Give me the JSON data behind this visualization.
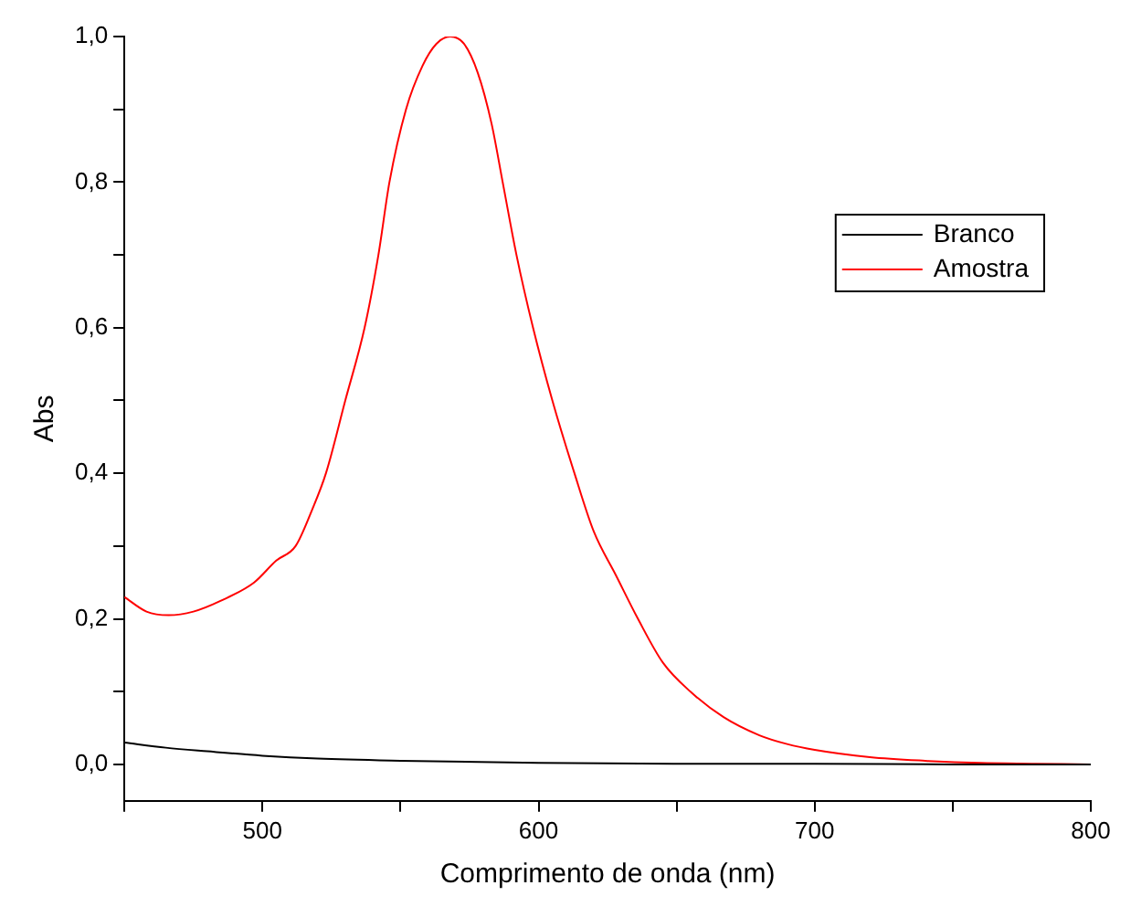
{
  "chart_data": {
    "type": "line",
    "xlabel": "Comprimento de onda (nm)",
    "ylabel": "Abs",
    "xlim": [
      450,
      800
    ],
    "ylim": [
      -0.05,
      1.0
    ],
    "xticks": [
      {
        "value": 450,
        "label": null
      },
      500,
      {
        "value": 550,
        "label": null
      },
      600,
      {
        "value": 650,
        "label": null
      },
      700,
      {
        "value": 750,
        "label": null
      },
      800
    ],
    "yticks": [
      {
        "value": 0,
        "label": "0,0"
      },
      {
        "value": 0.1,
        "label": null
      },
      {
        "value": 0.2,
        "label": "0,2"
      },
      {
        "value": 0.3,
        "label": null
      },
      {
        "value": 0.4,
        "label": "0,4"
      },
      {
        "value": 0.5,
        "label": null
      },
      {
        "value": 0.6,
        "label": "0,6"
      },
      {
        "value": 0.7,
        "label": null
      },
      {
        "value": 0.8,
        "label": "0,8"
      },
      {
        "value": 0.9,
        "label": null
      },
      {
        "value": 1.0,
        "label": "1,0"
      }
    ],
    "grid": false,
    "legend": "top right",
    "marker": "none",
    "line_style": "solid",
    "series": [
      {
        "name": "Branco",
        "color": "#000000",
        "x": [
          450,
          465,
          480,
          500,
          520,
          550,
          600,
          650,
          700,
          750,
          800
        ],
        "values": [
          0.03,
          0.023,
          0.018,
          0.012,
          0.008,
          0.005,
          0.002,
          0.001,
          0.001,
          0,
          0
        ]
      },
      {
        "name": "Amostra",
        "color": "#ff0000",
        "x": [
          450,
          458,
          466,
          475,
          485,
          497,
          505,
          512,
          518,
          523,
          530,
          537,
          542,
          546,
          552,
          558,
          563,
          568,
          573,
          578,
          583,
          587,
          592,
          598,
          605,
          613,
          620,
          628,
          636,
          645,
          655,
          667,
          680,
          690,
          700,
          720,
          740,
          760,
          780,
          800
        ],
        "values": [
          0.23,
          0.21,
          0.205,
          0.21,
          0.225,
          0.25,
          0.28,
          0.3,
          0.35,
          0.4,
          0.5,
          0.6,
          0.7,
          0.8,
          0.9,
          0.96,
          0.99,
          1.0,
          0.99,
          0.95,
          0.88,
          0.8,
          0.7,
          0.6,
          0.5,
          0.4,
          0.32,
          0.26,
          0.2,
          0.14,
          0.1,
          0.065,
          0.04,
          0.028,
          0.02,
          0.01,
          0.005,
          0.002,
          0.001,
          0
        ]
      }
    ]
  }
}
